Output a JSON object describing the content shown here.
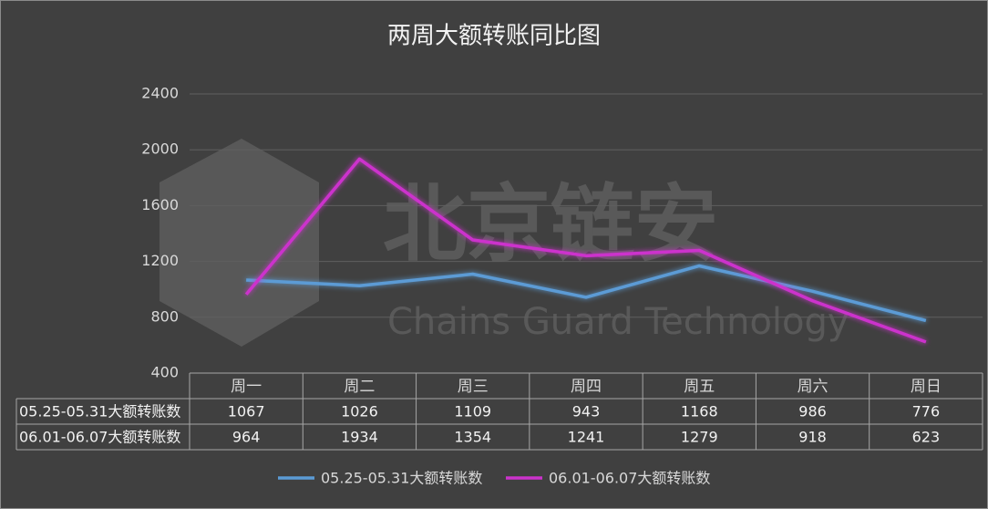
{
  "chart_data": {
    "type": "line",
    "title": "两周大额转账同比图",
    "categories": [
      "周一",
      "周二",
      "周三",
      "周四",
      "周五",
      "周六",
      "周日"
    ],
    "series": [
      {
        "name": "05.25-05.31大额转账数",
        "color": "#5b9bd5",
        "values": [
          1067,
          1026,
          1109,
          943,
          1168,
          986,
          776
        ]
      },
      {
        "name": "06.01-06.07大额转账数",
        "color": "#cc33cc",
        "values": [
          964,
          1934,
          1354,
          1241,
          1279,
          918,
          623
        ]
      }
    ],
    "ylim": [
      400,
      2400
    ],
    "yticks": [
      400,
      800,
      1200,
      1600,
      2000,
      2400
    ],
    "grid": true,
    "data_table": true,
    "legend": "bottom",
    "watermark": {
      "title": "北京链安",
      "subtitle": "Chains Guard Technology"
    }
  }
}
